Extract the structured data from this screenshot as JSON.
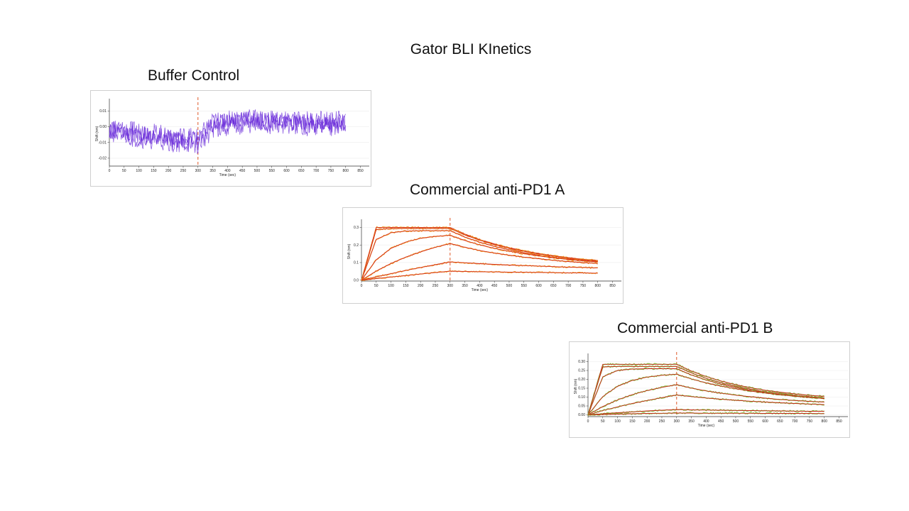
{
  "slide": {
    "title": "Gator BLI KInetics"
  },
  "charts": [
    {
      "title": "Buffer Control"
    },
    {
      "title": "Commercial anti-PD1 A"
    },
    {
      "title": "Commercial anti-PD1 B"
    }
  ],
  "chart_data": [
    {
      "type": "line",
      "title": "Buffer Control",
      "xlabel": "Time (sec)",
      "ylabel": "Shift (nm)",
      "xlim": [
        0,
        880
      ],
      "ylim": [
        -0.025,
        0.016
      ],
      "xticks": [
        0,
        50,
        100,
        150,
        200,
        250,
        300,
        350,
        400,
        450,
        500,
        550,
        600,
        650,
        700,
        750,
        800,
        850
      ],
      "yticks": [
        -0.02,
        -0.01,
        0.0,
        0.01
      ],
      "ytick_labels": [
        "-0.02",
        "-0.01",
        "0.00",
        "0.01"
      ],
      "association_end": 300,
      "colors": {
        "trace": "#6a2bd9",
        "divider": "#e05a2a"
      },
      "series": [
        {
          "x": [
            0,
            50,
            100,
            150,
            200,
            250,
            300,
            350,
            400,
            450,
            500,
            550,
            600,
            650,
            700,
            750,
            800
          ],
          "values": [
            -0.002,
            -0.004,
            -0.005,
            -0.006,
            -0.007,
            -0.008,
            -0.009,
            0.001,
            0.003,
            0.004,
            0.003,
            0.003,
            0.003,
            0.002,
            0.002,
            0.002,
            0.002
          ]
        },
        {
          "x": [
            0,
            50,
            100,
            150,
            200,
            250,
            300,
            350,
            400,
            450,
            500,
            550,
            600,
            650,
            700,
            750,
            800
          ],
          "values": [
            0.0,
            -0.002,
            -0.003,
            -0.004,
            -0.005,
            -0.006,
            -0.007,
            0.003,
            0.005,
            0.006,
            0.005,
            0.005,
            0.004,
            0.004,
            0.004,
            0.004,
            0.004
          ]
        },
        {
          "x": [
            0,
            50,
            100,
            150,
            200,
            250,
            300,
            350,
            400,
            450,
            500,
            550,
            600,
            650,
            700,
            750,
            800
          ],
          "values": [
            -0.004,
            -0.006,
            -0.008,
            -0.009,
            -0.01,
            -0.011,
            -0.012,
            -0.002,
            0.0,
            0.001,
            0.001,
            0.001,
            0.001,
            0.0,
            0.0,
            0.0,
            0.0
          ]
        }
      ]
    },
    {
      "type": "line",
      "title": "Commercial anti-PD1 A",
      "xlabel": "Time (sec)",
      "ylabel": "Shift (nm)",
      "xlim": [
        0,
        880
      ],
      "ylim": [
        -0.005,
        0.33
      ],
      "xticks": [
        0,
        50,
        100,
        150,
        200,
        250,
        300,
        350,
        400,
        450,
        500,
        550,
        600,
        650,
        700,
        750,
        800,
        850
      ],
      "yticks": [
        0.0,
        0.1,
        0.2,
        0.3
      ],
      "ytick_labels": [
        "0.0",
        "0.1",
        "0.2",
        "0.3"
      ],
      "association_end": 300,
      "colors": {
        "fit": "#d42a1a",
        "data": "#f0a020",
        "divider": "#e05a2a"
      },
      "series": [
        {
          "x": [
            0,
            50,
            100,
            150,
            200,
            250,
            300,
            350,
            400,
            450,
            500,
            550,
            600,
            650,
            700,
            750,
            800
          ],
          "values": [
            0.0,
            0.3,
            0.3,
            0.3,
            0.3,
            0.3,
            0.3,
            0.262,
            0.231,
            0.206,
            0.185,
            0.167,
            0.152,
            0.139,
            0.128,
            0.119,
            0.112
          ]
        },
        {
          "x": [
            0,
            50,
            100,
            150,
            200,
            250,
            300,
            350,
            400,
            450,
            500,
            550,
            600,
            650,
            700,
            750,
            800
          ],
          "values": [
            0.0,
            0.288,
            0.294,
            0.294,
            0.294,
            0.294,
            0.294,
            0.257,
            0.227,
            0.202,
            0.181,
            0.164,
            0.149,
            0.137,
            0.126,
            0.117,
            0.11
          ]
        },
        {
          "x": [
            0,
            50,
            100,
            150,
            200,
            250,
            300,
            350,
            400,
            450,
            500,
            550,
            600,
            650,
            700,
            750,
            800
          ],
          "values": [
            0.0,
            0.232,
            0.27,
            0.279,
            0.281,
            0.281,
            0.281,
            0.245,
            0.216,
            0.192,
            0.173,
            0.156,
            0.142,
            0.13,
            0.12,
            0.112,
            0.105
          ]
        },
        {
          "x": [
            0,
            50,
            100,
            150,
            200,
            250,
            300,
            350,
            400,
            450,
            500,
            550,
            600,
            650,
            700,
            750,
            800
          ],
          "values": [
            0.0,
            0.116,
            0.181,
            0.217,
            0.238,
            0.249,
            0.255,
            0.226,
            0.201,
            0.181,
            0.164,
            0.15,
            0.138,
            0.127,
            0.118,
            0.11,
            0.104
          ]
        },
        {
          "x": [
            0,
            50,
            100,
            150,
            200,
            250,
            300,
            350,
            400,
            450,
            500,
            550,
            600,
            650,
            700,
            750,
            800
          ],
          "values": [
            0.0,
            0.052,
            0.095,
            0.131,
            0.161,
            0.187,
            0.208,
            0.187,
            0.169,
            0.154,
            0.142,
            0.131,
            0.122,
            0.113,
            0.106,
            0.1,
            0.095
          ]
        },
        {
          "x": [
            0,
            50,
            100,
            150,
            200,
            250,
            300,
            350,
            400,
            450,
            500,
            550,
            600,
            650,
            700,
            750,
            800
          ],
          "values": [
            0.0,
            0.019,
            0.037,
            0.055,
            0.072,
            0.088,
            0.104,
            0.099,
            0.094,
            0.09,
            0.086,
            0.083,
            0.08,
            0.077,
            0.074,
            0.072,
            0.07
          ]
        },
        {
          "x": [
            0,
            50,
            100,
            150,
            200,
            250,
            300,
            350,
            400,
            450,
            500,
            550,
            600,
            650,
            700,
            750,
            800
          ],
          "values": [
            0.0,
            0.009,
            0.018,
            0.026,
            0.035,
            0.043,
            0.051,
            0.05,
            0.048,
            0.047,
            0.046,
            0.045,
            0.044,
            0.043,
            0.042,
            0.041,
            0.04
          ]
        }
      ]
    },
    {
      "type": "line",
      "title": "Commercial anti-PD1 B",
      "xlabel": "Time (sec)",
      "ylabel": "Shift (nm)",
      "xlim": [
        0,
        880
      ],
      "ylim": [
        -0.01,
        0.33
      ],
      "xticks": [
        0,
        50,
        100,
        150,
        200,
        250,
        300,
        350,
        400,
        450,
        500,
        550,
        600,
        650,
        700,
        750,
        800,
        850
      ],
      "yticks": [
        0.0,
        0.05,
        0.1,
        0.15,
        0.2,
        0.25,
        0.3
      ],
      "ytick_labels": [
        "0.00",
        "0.05",
        "0.10",
        "0.15",
        "0.20",
        "0.25",
        "0.30"
      ],
      "association_end": 300,
      "colors": {
        "fit": "#c8281a",
        "data": "#7cc23a",
        "divider": "#e05a2a"
      },
      "series": [
        {
          "x": [
            0,
            50,
            100,
            150,
            200,
            250,
            300,
            350,
            400,
            450,
            500,
            550,
            600,
            650,
            700,
            750,
            800
          ],
          "values": [
            0.0,
            0.285,
            0.285,
            0.285,
            0.285,
            0.285,
            0.285,
            0.247,
            0.216,
            0.191,
            0.17,
            0.153,
            0.139,
            0.128,
            0.118,
            0.11,
            0.104
          ]
        },
        {
          "x": [
            0,
            50,
            100,
            150,
            200,
            250,
            300,
            350,
            400,
            450,
            500,
            550,
            600,
            650,
            700,
            750,
            800
          ],
          "values": [
            0.0,
            0.27,
            0.273,
            0.273,
            0.273,
            0.273,
            0.273,
            0.236,
            0.206,
            0.181,
            0.161,
            0.145,
            0.131,
            0.12,
            0.11,
            0.102,
            0.096
          ]
        },
        {
          "x": [
            0,
            50,
            100,
            150,
            200,
            250,
            300,
            350,
            400,
            450,
            500,
            550,
            600,
            650,
            700,
            750,
            800
          ],
          "values": [
            0.0,
            0.214,
            0.25,
            0.258,
            0.26,
            0.26,
            0.26,
            0.225,
            0.196,
            0.173,
            0.154,
            0.139,
            0.126,
            0.115,
            0.106,
            0.098,
            0.092
          ]
        },
        {
          "x": [
            0,
            50,
            100,
            150,
            200,
            250,
            300,
            350,
            400,
            450,
            500,
            550,
            600,
            650,
            700,
            750,
            800
          ],
          "values": [
            0.0,
            0.103,
            0.161,
            0.194,
            0.213,
            0.223,
            0.229,
            0.202,
            0.18,
            0.162,
            0.147,
            0.134,
            0.123,
            0.113,
            0.105,
            0.098,
            0.092
          ]
        },
        {
          "x": [
            0,
            50,
            100,
            150,
            200,
            250,
            300,
            350,
            400,
            450,
            500,
            550,
            600,
            650,
            700,
            750,
            800
          ],
          "values": [
            0.0,
            0.047,
            0.084,
            0.114,
            0.137,
            0.155,
            0.17,
            0.151,
            0.135,
            0.122,
            0.111,
            0.102,
            0.094,
            0.087,
            0.081,
            0.076,
            0.072
          ]
        },
        {
          "x": [
            0,
            50,
            100,
            150,
            200,
            250,
            300,
            350,
            400,
            450,
            500,
            550,
            600,
            650,
            700,
            750,
            800
          ],
          "values": [
            0.0,
            0.024,
            0.045,
            0.064,
            0.081,
            0.097,
            0.112,
            0.103,
            0.095,
            0.088,
            0.082,
            0.077,
            0.072,
            0.068,
            0.064,
            0.061,
            0.058
          ]
        },
        {
          "x": [
            0,
            50,
            100,
            150,
            200,
            250,
            300,
            350,
            400,
            450,
            500,
            550,
            600,
            650,
            700,
            750,
            800
          ],
          "values": [
            0.0,
            0.006,
            0.012,
            0.017,
            0.022,
            0.026,
            0.03,
            0.028,
            0.027,
            0.026,
            0.025,
            0.024,
            0.023,
            0.022,
            0.021,
            0.02,
            0.02
          ]
        },
        {
          "x": [
            0,
            50,
            100,
            150,
            200,
            250,
            300,
            350,
            400,
            450,
            500,
            550,
            600,
            650,
            700,
            750,
            800
          ],
          "values": [
            0.0,
            0.002,
            0.004,
            0.006,
            0.008,
            0.009,
            0.01,
            0.01,
            0.009,
            0.009,
            0.009,
            0.009,
            0.008,
            0.008,
            0.008,
            0.008,
            0.007
          ]
        }
      ]
    }
  ]
}
